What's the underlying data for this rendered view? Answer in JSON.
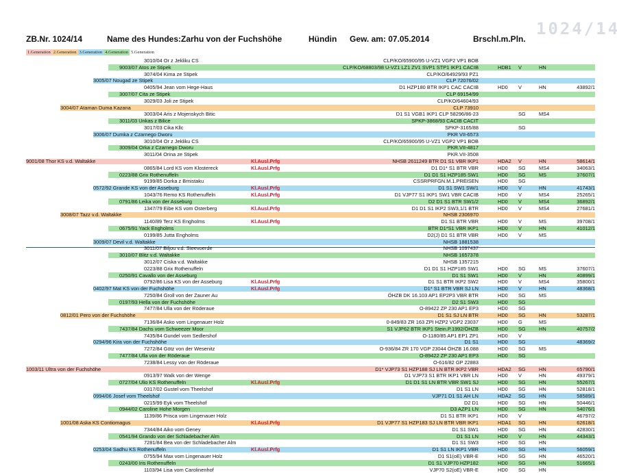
{
  "header": {
    "zb": "ZB.Nr. 1024/14",
    "name_label": "Name des Hundes:",
    "name": "Zarhu von der Fuchshöhe",
    "sex": "Hündin",
    "birth": "Gew. am: 07.05.2014",
    "color": "Brschl.m.Pln.",
    "stamp": "1024/14"
  },
  "legend": [
    "1.Generation",
    "2.Generation",
    "3.Generation",
    "4.Generation",
    "5.Generation"
  ],
  "colors": {
    "gen1": "#f6c9c3",
    "gen2": "#f9d19b",
    "gen3": "#a9dcf2",
    "gen4": "#a8e2a8"
  },
  "rows": [
    {
      "g": 5,
      "dog": "3010/04 Or z Jekliku CS",
      "lic": "CLP/KO/65900/95 U-VZ1 VGP2 VP1 BOB",
      "hd": "",
      "sg": "",
      "ms": "",
      "cert": ""
    },
    {
      "g": 4,
      "dog": "9003/07 Atos ze Stipek",
      "lic": "CLP/KO/68803/98 U-VZ1 LZ1 ZV1 SVP1 STP1 IKP1 CACIB",
      "hd": "HDB1",
      "sg": "V",
      "ms": "HN",
      "cert": ""
    },
    {
      "g": 5,
      "dog": "3074/04 Kima ze Stipek",
      "lic": "CLP/KO/64929/93 PZ1",
      "hd": "",
      "sg": "",
      "ms": "",
      "cert": ""
    },
    {
      "g": 3,
      "dog": "3005/07 Nougad ze Stipek",
      "lic": "CLP 72076/02",
      "hd": "",
      "sg": "",
      "ms": "",
      "cert": ""
    },
    {
      "g": 5,
      "dog": "0405/94 Jean vom Hege-Haus",
      "lic": "D1 HZP180 BTR IKP1 CAC CACIB",
      "hd": "HD0",
      "sg": "V",
      "ms": "HN",
      "cert": "43892/1"
    },
    {
      "g": 4,
      "dog": "3007/07 Cita ze Stipek",
      "lic": "CLP 69154/99",
      "hd": "",
      "sg": "",
      "ms": "",
      "cert": ""
    },
    {
      "g": 5,
      "dog": "3029/03 Joli ze Stipek",
      "lic": "CLP/KO/64604/93",
      "hd": "",
      "sg": "",
      "ms": "",
      "cert": ""
    },
    {
      "g": 2,
      "dog": "3004/07 Ataman Duma Kazana",
      "lic": "CLP 73910",
      "hd": "",
      "sg": "",
      "ms": "",
      "cert": ""
    },
    {
      "g": 5,
      "dog": "3003/04 Aris z Mojenskych Bitic",
      "lic": "D1 S1 VGB1 IKP1 CLP 58296/86-23",
      "hd": "",
      "sg": "SG",
      "ms": "MS4",
      "cert": ""
    },
    {
      "g": 4,
      "dog": "3011/03 Unkas z Bilice",
      "lic": "SPKP-3868/93 CACIB CACIT",
      "hd": "",
      "sg": "",
      "ms": "",
      "cert": ""
    },
    {
      "g": 5,
      "dog": "3017/03 Cika Kllc",
      "lic": "SPKP-3165/88",
      "hd": "",
      "sg": "SG",
      "ms": "",
      "cert": ""
    },
    {
      "g": 3,
      "dog": "3006/07 Dumka z Czarnego Dworu",
      "lic": "PKR VII-6573",
      "hd": "",
      "sg": "",
      "ms": "",
      "cert": ""
    },
    {
      "g": 5,
      "dog": "3010/04 Or z Jekliku CS",
      "lic": "CLP/KO/65900/95 U-VZ1 VGP2 VP1 BOB",
      "hd": "",
      "sg": "",
      "ms": "",
      "cert": ""
    },
    {
      "g": 4,
      "dog": "3009/04 Orka z Czarnego Dworu",
      "lic": "PKR.VII-4817",
      "hd": "",
      "sg": "",
      "ms": "",
      "cert": ""
    },
    {
      "g": 5,
      "dog": "3011/04 Orina ze Stipek",
      "lic": "PKR.VII-3508",
      "hd": "",
      "sg": "",
      "ms": "",
      "cert": ""
    },
    {
      "g": 1,
      "dog": "9001/08 Thor KS v.d. Waltakke",
      "kl": "Kl.Ausl.Prfg",
      "lic": "NHSB 2611249 BTR D1 S1 VBR IKP1",
      "hd": "HDA2",
      "sg": "V",
      "ms": "HN",
      "cert": "58614/1"
    },
    {
      "g": 5,
      "dog": "0865/84 Lord KS vom Klostereck",
      "kl": "Kl.Ausl.Prfg",
      "lic": "D1 D1* S1 BTR VBR",
      "hd": "HD0",
      "sg": "SG",
      "ms": "MS4",
      "cert": "34063/1"
    },
    {
      "g": 4,
      "dog": "0223/88 Grix Rothenuffeln",
      "lic": "D1 D1 S1 HZP185 SW1",
      "hd": "HD0",
      "sg": "SG",
      "ms": "MS",
      "cert": "37607/1"
    },
    {
      "g": 5,
      "dog": "9199/85 Dorka z Brnistaku",
      "lic": "CSSRPRFGN.M.1.PREISEN",
      "hd": "HD0",
      "sg": "SG",
      "ms": "",
      "cert": ""
    },
    {
      "g": 3,
      "dog": "0572/92 Grande KS von der Asseburg",
      "kl": "Kl.Ausl.Prfg",
      "lic": "D1 S1 SW1 SW/1",
      "hd": "HD0",
      "sg": "V",
      "ms": "HN",
      "cert": "41743/1"
    },
    {
      "g": 5,
      "dog": "1043/76 Remo KS Rothenuffeln",
      "kl": "Kl.Ausl.Prfg",
      "lic": "D1 VJP77 S1 IKP1 SW1 VBR CACIB",
      "hd": "HD0",
      "sg": "V",
      "ms": "MS4",
      "cert": "25265/1"
    },
    {
      "g": 4,
      "dog": "0791/86 Leika von der Asseburg",
      "lic": "D2 D1 S1 BTR SW1/2",
      "hd": "HD0",
      "sg": "V",
      "ms": "MS4",
      "cert": "36892/1"
    },
    {
      "g": 5,
      "dog": "1347/79 Eibe KS vom Osterberg",
      "kl": "Kl.Ausl.Prfg",
      "lic": "D1 D1 S1 IKP2 SW3,1/1 BTR",
      "hd": "HD0",
      "sg": "V",
      "ms": "MS4",
      "cert": "27681/1"
    },
    {
      "g": 2,
      "dog": "3008/07 Tazz v.d. Waltakke",
      "lic": "NHSB 2306970",
      "hd": "",
      "sg": "",
      "ms": "",
      "cert": ""
    },
    {
      "g": 5,
      "dog": "1140/89 Terz KS Engholms",
      "kl": "Kl.Ausl.Prfg",
      "lic": "D1 S1 BTR VBR",
      "hd": "HD0",
      "sg": "V",
      "ms": "MS",
      "cert": "39708/1"
    },
    {
      "g": 4,
      "dog": "0675/91 Yack Engholms",
      "lic": "BTR D1*S1 VBR IKP1",
      "hd": "HD0",
      "sg": "V",
      "ms": "HN",
      "cert": "41012/1"
    },
    {
      "g": 5,
      "dog": "0199/85 Jutta Engholms",
      "lic": "D2(J) D1 S1 BTR VBR",
      "hd": "HD0",
      "sg": "V",
      "ms": "MS",
      "cert": ""
    },
    {
      "g": 3,
      "dog": "3009/07 Devil v.d. Waltakke",
      "lic": "NHSB 1881538",
      "hd": "",
      "sg": "",
      "ms": "",
      "cert": ""
    },
    {
      "g": 5,
      "dog": "3011/07 Biljou v.d. Steevoerde",
      "lic": "NHSB 1097437",
      "hd": "",
      "sg": "",
      "ms": "",
      "cert": ""
    },
    {
      "g": 4,
      "dog": "3010/07 Blitz v.d. Waltakke",
      "lic": "NHSB 1657378",
      "hd": "",
      "sg": "",
      "ms": "",
      "cert": ""
    },
    {
      "g": 5,
      "dog": "3012/07 Ciska v.d. Waltakke",
      "lic": "NHSB 1357215",
      "hd": "",
      "sg": "",
      "ms": "",
      "cert": ""
    },
    {
      "g": 5,
      "dog": "0223/88 Grix Rothenuffeln",
      "lic": "D1 D1 S1 HZP185 SW1",
      "hd": "HD0",
      "sg": "SG",
      "ms": "MS",
      "cert": "37607/1"
    },
    {
      "g": 4,
      "dog": "0250/91 Cavallo von der Asseburg",
      "lic": "D1 S1 SW1",
      "hd": "HD0",
      "sg": "V",
      "ms": "HN",
      "cert": "40899/1"
    },
    {
      "g": 5,
      "dog": "0792/86 Lisa KS von der Asseburg",
      "kl": "Kl.Ausl.Prfg",
      "lic": "D1 S1 BTR IKP2 SW2",
      "hd": "HD0",
      "sg": "V",
      "ms": "MS4",
      "cert": "35800/1"
    },
    {
      "g": 3,
      "dog": "0402/97 Mat KS von der Fuchshöhe",
      "kl": "Kl.Ausl.Prfg",
      "lic": "D1* S1 BTR VBR SJ LN",
      "hd": "HD0",
      "sg": "V",
      "ms": "HN",
      "cert": "48368/1"
    },
    {
      "g": 5,
      "dog": "7250/84 Groll von der Zauner Au",
      "lic": "ÖHZB DK 16.103 AP1 EP2P3 VBR BTR",
      "hd": "HD0",
      "sg": "SG",
      "ms": "MS",
      "cert": ""
    },
    {
      "g": 4,
      "dog": "0197/93 Hella von der Fuchshöhe",
      "lic": "D2 S1 SW3",
      "hd": "HD0",
      "sg": "SG",
      "ms": "",
      "cert": ""
    },
    {
      "g": 5,
      "dog": "7477/84 Ulla von der Röderaue",
      "lic": "O-89422 ZP 230 AP1 EP3",
      "hd": "HD0",
      "sg": "SG",
      "ms": "",
      "cert": ""
    },
    {
      "g": 2,
      "dog": "0812/01 Pero von der Fuchshöhe",
      "lic": "D1 S1 SJ LN BTR",
      "hd": "HD0",
      "sg": "SG",
      "ms": "HN",
      "cert": "53287/1"
    },
    {
      "g": 5,
      "dog": "7136/84 Asko vom Lingenauer Holz",
      "lic": "0-849/83 ZR 163 ZPI HZP2 VGP2 23037",
      "hd": "HD0",
      "sg": "G",
      "ms": "MS",
      "cert": ""
    },
    {
      "g": 4,
      "dog": "7437/84 Dachs vom Schweezer Moor",
      "lic": "S1 VJP62 BTR IKP1 Stein.P.1992/ÖHZB",
      "hd": "HD0",
      "sg": "SG",
      "ms": "HN",
      "cert": "40757/2"
    },
    {
      "g": 5,
      "dog": "7435/84 Gundel vom Sedlershof",
      "lic": "O-1180/85 AP1 EP1 ZP1",
      "hd": "HD0",
      "sg": "V",
      "ms": "",
      "cert": ""
    },
    {
      "g": 3,
      "dog": "0294/96 Kira von der Fuchshöhe",
      "lic": "D1 S1",
      "hd": "HD0",
      "sg": "SG",
      "ms": "",
      "cert": "48369/2"
    },
    {
      "g": 5,
      "dog": "7272/84 Götz von der Wesenitz",
      "lic": "O-936/84 ZR 170 VGP 23044 ÖHZB 16.088",
      "hd": "HD0",
      "sg": "SG",
      "ms": "MS",
      "cert": ""
    },
    {
      "g": 4,
      "dog": "7477/84 Ulla von der Röderaue",
      "lic": "O-89422 ZP 230 AP1 EP3",
      "hd": "HD0",
      "sg": "SG",
      "ms": "",
      "cert": ""
    },
    {
      "g": 5,
      "dog": "7238/84 Lessy von der Röderaue",
      "lic": "O-616/82 GP 22883",
      "hd": "",
      "sg": "",
      "ms": "",
      "cert": ""
    },
    {
      "g": 1,
      "dog": "1003/11 Ultra von der Fuchshöhe",
      "lic": "D1* VJP73 S1 HZP188 SJ LN BTR IKP2 VBR",
      "hd": "HDA2",
      "sg": "SG",
      "ms": "HN",
      "cert": "65790/1"
    },
    {
      "g": 5,
      "dog": "0913/97 Walk von der Wenge",
      "lic": "D1 VJP73 S1 BTR IKP1 VBR LN",
      "hd": "HD0",
      "sg": "V",
      "ms": "HN",
      "cert": "49379/1"
    },
    {
      "g": 4,
      "dog": "0727/04 Ulio KS Rothenuffeln",
      "kl": "Kl.Ausl.Prfg",
      "lic": "D1 D1 S1 LN BTR VBR SW1 SJ",
      "hd": "HD0",
      "sg": "SG",
      "ms": "HN",
      "cert": "55267/1"
    },
    {
      "g": 5,
      "dog": "0317/02 Gustel vom Theelshof",
      "lic": "D1 S1 LN",
      "hd": "HD0",
      "sg": "SG",
      "ms": "HN",
      "cert": "52818/1"
    },
    {
      "g": 3,
      "dog": "0994/06 Josef vom Theelshof",
      "lic": "VJP71 D1 S1 AH LN",
      "hd": "HDA2",
      "sg": "SG",
      "ms": "HN",
      "cert": "58589/1"
    },
    {
      "g": 5,
      "dog": "0215/99 Eyk vom Theelshof",
      "lic": "D2 D1",
      "hd": "HD0",
      "sg": "SG",
      "ms": "HN",
      "cert": "50446/1"
    },
    {
      "g": 4,
      "dog": "0944/02 Caroline Hohe Morgen",
      "lic": "D3 AZP1 LN",
      "hd": "HD0",
      "sg": "SG",
      "ms": "HN",
      "cert": "54076/1"
    },
    {
      "g": 5,
      "dog": "1139/86 Prisca vom Lingenauer Holz",
      "lic": "D1 S1 BTR IKP1",
      "hd": "HD0",
      "sg": "V",
      "ms": "",
      "cert": "46797/2"
    },
    {
      "g": 2,
      "dog": "1001/08 Aska KS Contiomagus",
      "kl": "Kl.Ausl.Prfg",
      "lic": "D1 VJP77 S1 HZP183 SJ LN BTR VBR IKP1",
      "hd": "HDA1",
      "sg": "SG",
      "ms": "HN",
      "cert": "62618/1"
    },
    {
      "g": 5,
      "dog": "7344/84 Aiko vom Geney",
      "lic": "D1 S1 SW1",
      "hd": "HD0",
      "sg": "SG",
      "ms": "HN",
      "cert": "42830/1"
    },
    {
      "g": 4,
      "dog": "0541/94 Grando von der Schladebacher Alm",
      "lic": "D1 S1 LN",
      "hd": "HD0",
      "sg": "V",
      "ms": "HN",
      "cert": "44343/1"
    },
    {
      "g": 5,
      "dog": "7281/84 Bea von der Schladebacher Alm",
      "lic": "D1 S1 SW3",
      "hd": "HD0",
      "sg": "SG",
      "ms": "HN",
      "cert": ""
    },
    {
      "g": 3,
      "dog": "0253/04 Sadhu KS Rothenuffeln",
      "kl": "Kl.Ausl.Prfg",
      "lic": "D1 S1 LN IKP1 VBR",
      "hd": "HD0",
      "sg": "SG",
      "ms": "HN",
      "cert": "56059/1"
    },
    {
      "g": 5,
      "dog": "0755/94 Max vom Lingenauer Holz",
      "lic": "D1 S1(oE) VBR-E",
      "hd": "HD0",
      "sg": "SG",
      "ms": "HN",
      "cert": "46520/1"
    },
    {
      "g": 4,
      "dog": "0243/00 Iris Rothenuffeln",
      "lic": "D1 S1 VJP70 HZP182",
      "hd": "HD0",
      "sg": "SG",
      "ms": "HN",
      "cert": "51665/1"
    },
    {
      "g": 5,
      "dog": "1103/94 Lisa vom Carolinenhof",
      "lic": "VJP70 S2(oE) VBR-E",
      "hd": "HD0",
      "sg": "SG",
      "ms": "HN",
      "cert": ""
    }
  ]
}
